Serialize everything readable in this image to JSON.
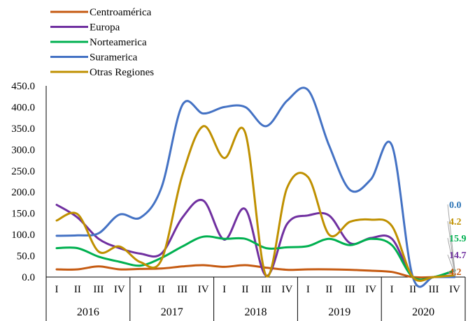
{
  "chart_data": {
    "type": "line",
    "title": "",
    "xlabel": "",
    "ylabel": "",
    "ylim": [
      0,
      450
    ],
    "yticks": [
      "0.0",
      "50.0",
      "100.0",
      "150.0",
      "200.0",
      "250.0",
      "300.0",
      "350.0",
      "400.0",
      "450.0"
    ],
    "quarters": [
      "I",
      "II",
      "III",
      "IV"
    ],
    "years": [
      "2016",
      "2017",
      "2018",
      "2019",
      "2020"
    ],
    "legend_position": "top-left",
    "grid": false,
    "smooth": true,
    "series": [
      {
        "name": "Centroamérica",
        "color": "#C55A11",
        "values": [
          18,
          18,
          25,
          18,
          19,
          20,
          25,
          28,
          24,
          28,
          22,
          17,
          18,
          18,
          17,
          15,
          12,
          0,
          0,
          4.2
        ]
      },
      {
        "name": "Europa",
        "color": "#7030A0",
        "values": [
          170,
          140,
          90,
          68,
          55,
          55,
          140,
          180,
          88,
          160,
          3,
          125,
          145,
          145,
          80,
          92,
          90,
          0,
          0,
          14.7
        ]
      },
      {
        "name": "Norteamerica",
        "color": "#00B050",
        "values": [
          68,
          68,
          48,
          36,
          27,
          45,
          72,
          95,
          90,
          90,
          68,
          70,
          73,
          90,
          75,
          90,
          75,
          0,
          0,
          15.9
        ]
      },
      {
        "name": "Suramerica",
        "color": "#4472C4",
        "values": [
          97,
          98,
          103,
          147,
          140,
          210,
          405,
          385,
          400,
          400,
          355,
          415,
          440,
          310,
          205,
          230,
          310,
          0,
          0,
          0.0
        ]
      },
      {
        "name": "Otras Regiones",
        "color": "#BF9000",
        "values": [
          133,
          148,
          60,
          72,
          35,
          40,
          240,
          355,
          280,
          340,
          3,
          210,
          235,
          100,
          130,
          135,
          120,
          0,
          0,
          4.2
        ]
      }
    ],
    "end_labels": [
      {
        "text": "0.0",
        "color": "#2E75B6"
      },
      {
        "text": "4.2",
        "color": "#BF9000"
      },
      {
        "text": "15.9",
        "color": "#00B050"
      },
      {
        "text": "14.7",
        "color": "#7030A0"
      },
      {
        "text": "4.2",
        "color": "#C55A11"
      }
    ]
  }
}
